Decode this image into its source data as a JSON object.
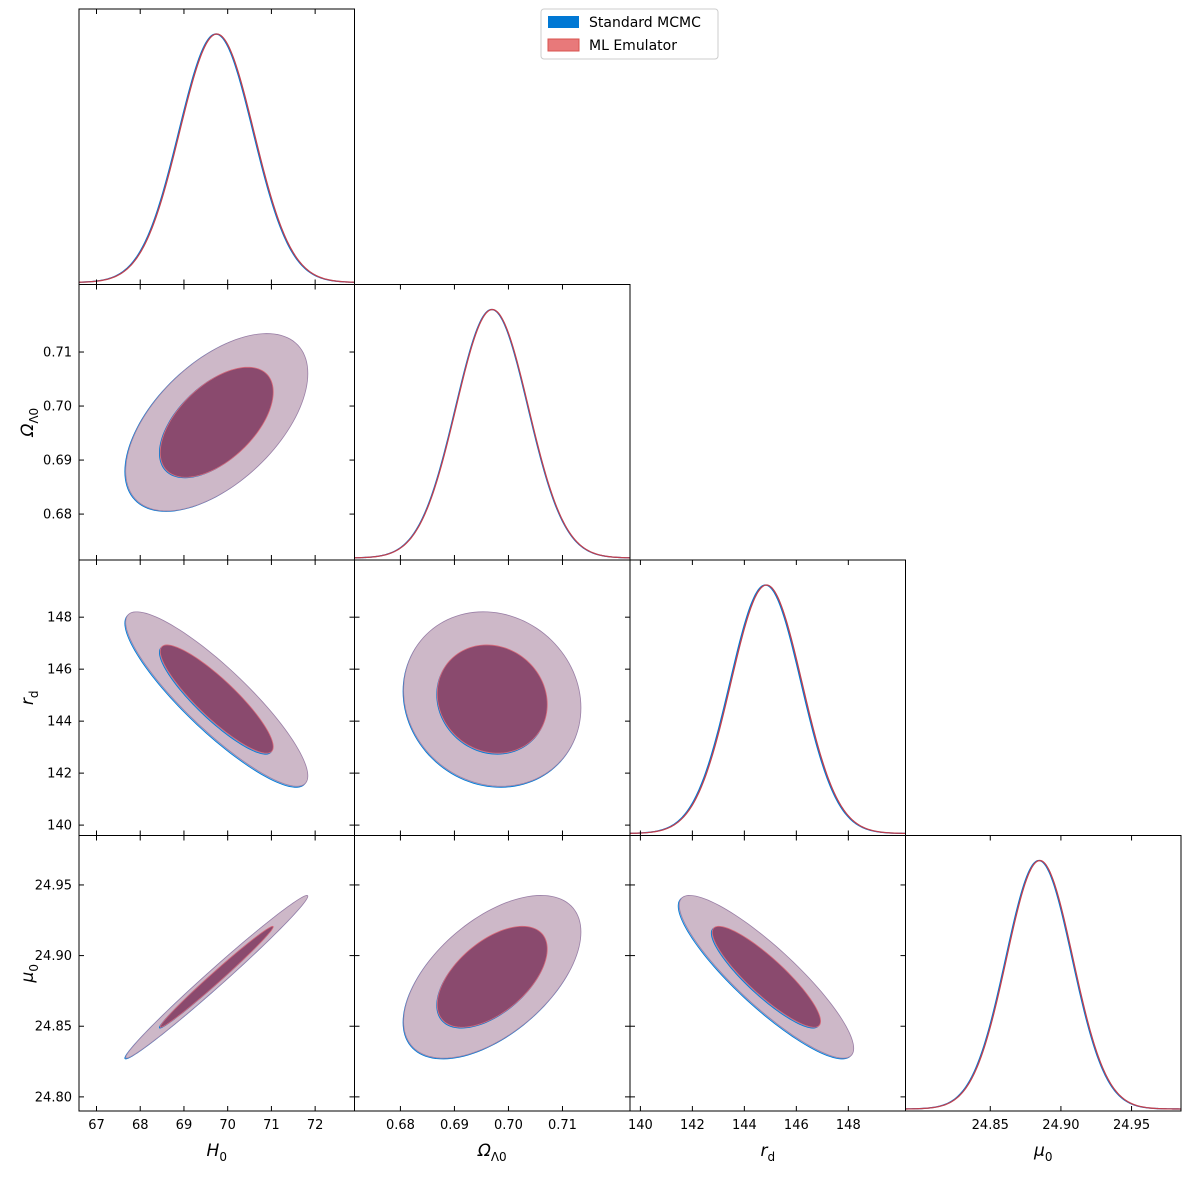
{
  "chart_data": {
    "type": "corner",
    "title": "",
    "legend": {
      "placement": "top-center",
      "entries": [
        {
          "name": "Standard MCMC",
          "color": "#0078d4"
        },
        {
          "name": "ML Emulator",
          "color": "#e8797a"
        }
      ]
    },
    "overlap_fill_color": "#8a4a6e",
    "parameters": [
      {
        "id": "H0",
        "symbol": "H",
        "sub": "0",
        "range": [
          66.6,
          72.9
        ],
        "ticks": [
          67,
          68,
          69,
          70,
          71,
          72
        ],
        "tick_labels": [
          "67",
          "68",
          "69",
          "70",
          "71",
          "72"
        ],
        "mean": 69.75,
        "sigma": 0.85
      },
      {
        "id": "OmegaL0",
        "symbol": "Ω",
        "sub": "Λ0",
        "range": [
          0.6715,
          0.7225
        ],
        "ticks": [
          0.68,
          0.69,
          0.7,
          0.71
        ],
        "tick_labels": [
          "0.68",
          "0.69",
          "0.70",
          "0.71"
        ],
        "mean": 0.697,
        "sigma": 0.0067
      },
      {
        "id": "rd",
        "symbol": "r",
        "sub": "d",
        "range": [
          139.6,
          150.2
        ],
        "ticks": [
          140,
          142,
          144,
          146,
          148
        ],
        "tick_labels": [
          "140",
          "142",
          "144",
          "146",
          "148"
        ],
        "mean": 144.85,
        "sigma": 1.37
      },
      {
        "id": "mu0",
        "symbol": "μ",
        "sub": "0",
        "range": [
          24.79,
          24.985
        ],
        "ticks": [
          24.85,
          24.9,
          24.95
        ],
        "tick_labels": [
          "24.85",
          "24.90",
          "24.95"
        ],
        "left_ticks": [
          24.8,
          24.85,
          24.9,
          24.95
        ],
        "left_tick_labels": [
          "24.80",
          "24.85",
          "24.90",
          "24.95"
        ],
        "mean": 24.885,
        "sigma": 0.0235
      }
    ],
    "correlations": {
      "OmegaL0|H0": 0.55,
      "rd|H0": -0.88,
      "rd|OmegaL0": -0.1,
      "mu0|H0": 0.99,
      "mu0|OmegaL0": 0.55,
      "mu0|rd": -0.88
    },
    "series": [
      {
        "name": "Standard MCMC",
        "mean_offsets": {
          "H0": -0.02,
          "OmegaL0": -0.0001,
          "rd": -0.04,
          "mu0": -0.0006
        }
      },
      {
        "name": "ML Emulator",
        "mean_offsets": {
          "H0": 0.0,
          "OmegaL0": 0.0,
          "rd": 0.0,
          "mu0": 0.0
        }
      }
    ]
  }
}
